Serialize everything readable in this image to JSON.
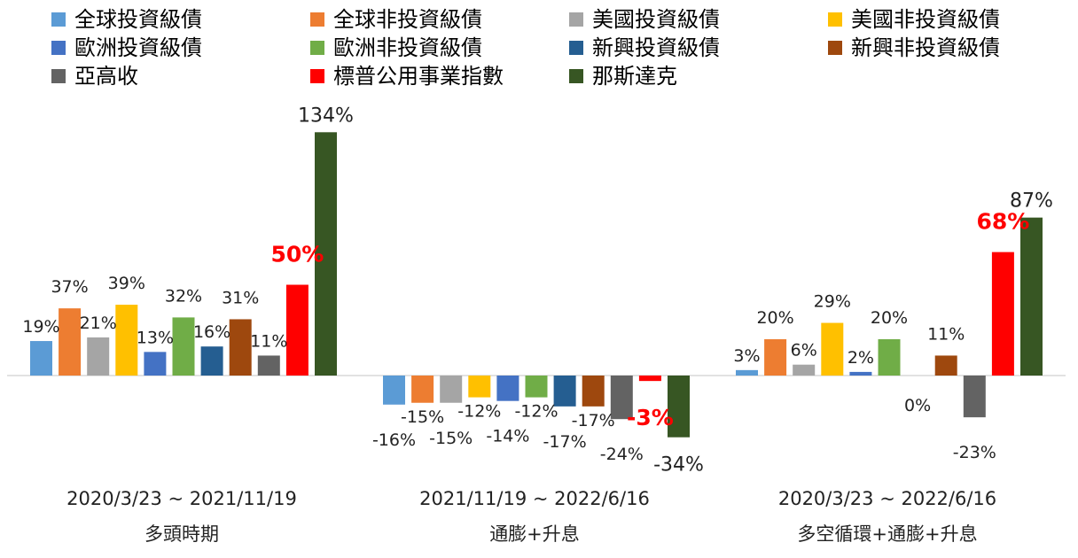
{
  "chart_data": {
    "type": "bar",
    "title": "",
    "xlabel": "",
    "ylabel": "",
    "ylim": [
      -40,
      140
    ],
    "grid": false,
    "legend_position": "top",
    "categories": [
      {
        "date": "2020/3/23 ~ 2021/11/19",
        "label": "多頭時期"
      },
      {
        "date": "2021/11/19 ~ 2022/6/16",
        "label": "通膨+升息"
      },
      {
        "date": "2020/3/23 ~ 2022/6/16",
        "label": "多空循環+通膨+升息"
      }
    ],
    "series": [
      {
        "name": "全球投資級債",
        "color": "#5b9bd5",
        "values": [
          19,
          -16,
          3
        ],
        "labels": [
          "19%",
          "-16%",
          "3%"
        ]
      },
      {
        "name": "全球非投資級債",
        "color": "#ed7d31",
        "values": [
          37,
          -15,
          20
        ],
        "labels": [
          "37%",
          "-15%",
          "20%"
        ]
      },
      {
        "name": "美國投資級債",
        "color": "#a5a5a5",
        "values": [
          21,
          -15,
          6
        ],
        "labels": [
          "21%",
          "-15%",
          "6%"
        ]
      },
      {
        "name": "美國非投資級債",
        "color": "#ffc000",
        "values": [
          39,
          -12,
          29
        ],
        "labels": [
          "39%",
          "-12%",
          "29%"
        ]
      },
      {
        "name": "歐洲投資級債",
        "color": "#4472c4",
        "values": [
          13,
          -14,
          2
        ],
        "labels": [
          "13%",
          "-14%",
          "2%"
        ]
      },
      {
        "name": "歐洲非投資級債",
        "color": "#70ad47",
        "values": [
          32,
          -12,
          20
        ],
        "labels": [
          "32%",
          "-12%",
          "20%"
        ]
      },
      {
        "name": "新興投資級債",
        "color": "#255e91",
        "values": [
          16,
          -17,
          0
        ],
        "labels": [
          "16%",
          "-17%",
          "0%"
        ]
      },
      {
        "name": "新興非投資級債",
        "color": "#9e480e",
        "values": [
          31,
          -17,
          11
        ],
        "labels": [
          "31%",
          "-17%",
          "11%"
        ]
      },
      {
        "name": "亞高收",
        "color": "#636363",
        "values": [
          11,
          -24,
          -23
        ],
        "labels": [
          "11%",
          "-24%",
          "-23%"
        ]
      },
      {
        "name": "標普公用事業指數",
        "color": "#ff0000",
        "values": [
          50,
          -3,
          68
        ],
        "labels": [
          "50%",
          "-3%",
          "68%"
        ],
        "highlight": true
      },
      {
        "name": "那斯達克",
        "color": "#375623",
        "values": [
          134,
          -34,
          87
        ],
        "labels": [
          "134%",
          "-34%",
          "87%"
        ],
        "big": true
      }
    ]
  }
}
